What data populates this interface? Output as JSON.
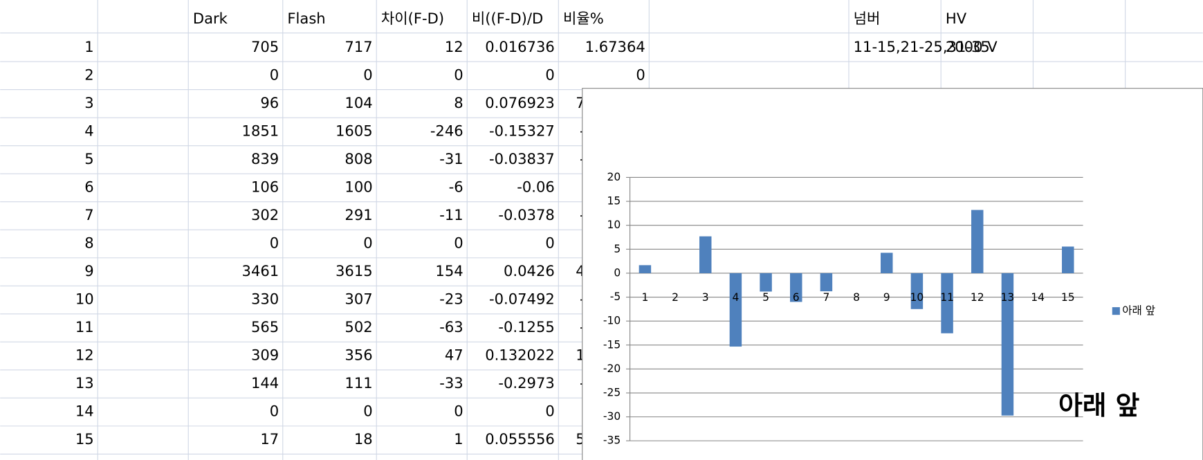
{
  "table": {
    "columns": [
      "Dark",
      "Flash",
      "차이(F-D)",
      "비((F-D)/D",
      "비율%"
    ],
    "rows": [
      [
        1,
        705,
        717,
        12,
        0.016736,
        1.67364
      ],
      [
        2,
        0,
        0,
        0,
        0,
        0
      ],
      [
        3,
        96,
        104,
        8,
        0.076923,
        7.692308
      ],
      [
        4,
        1851,
        1605,
        -246,
        -0.15327,
        -15.3271
      ],
      [
        5,
        839,
        808,
        -31,
        -0.03837,
        -3.83663
      ],
      [
        6,
        106,
        100,
        -6,
        -0.06,
        -6
      ],
      [
        7,
        302,
        291,
        -11,
        -0.0378,
        -3.78007
      ],
      [
        8,
        0,
        0,
        0,
        0,
        0
      ],
      [
        9,
        3461,
        3615,
        154,
        0.0426,
        4.260028
      ],
      [
        10,
        330,
        307,
        -23,
        -0.07492,
        -7.49186
      ],
      [
        11,
        565,
        502,
        -63,
        -0.1255,
        -12.5498
      ],
      [
        12,
        309,
        356,
        47,
        0.132022,
        13.20225
      ],
      [
        13,
        144,
        111,
        -33,
        -0.2973,
        -29.7297
      ],
      [
        14,
        0,
        0,
        0,
        0,
        0
      ],
      [
        15,
        17,
        18,
        1,
        0.055556,
        5.555556
      ]
    ]
  },
  "side": {
    "headers": [
      "넘버",
      "HV"
    ],
    "row1": [
      "11-15,21-25,31-35",
      "2000 V"
    ]
  },
  "chart_data": {
    "type": "bar",
    "categories": [
      1,
      2,
      3,
      4,
      5,
      6,
      7,
      8,
      9,
      10,
      11,
      12,
      13,
      14,
      15
    ],
    "series": [
      {
        "name": "아래 앞",
        "color": "#4f81bd",
        "values": [
          1.67364,
          0,
          7.692308,
          -15.3271,
          -3.83663,
          -6,
          -3.78007,
          0,
          4.260028,
          -7.49186,
          -12.5498,
          13.20225,
          -29.7297,
          0,
          5.555556
        ]
      }
    ],
    "ylim": [
      -35,
      20
    ],
    "yticks": [
      -35,
      -30,
      -25,
      -20,
      -15,
      -10,
      -5,
      0,
      5,
      10,
      15,
      20
    ],
    "grid": true,
    "legend": "right",
    "annotation": "아래 앞"
  }
}
